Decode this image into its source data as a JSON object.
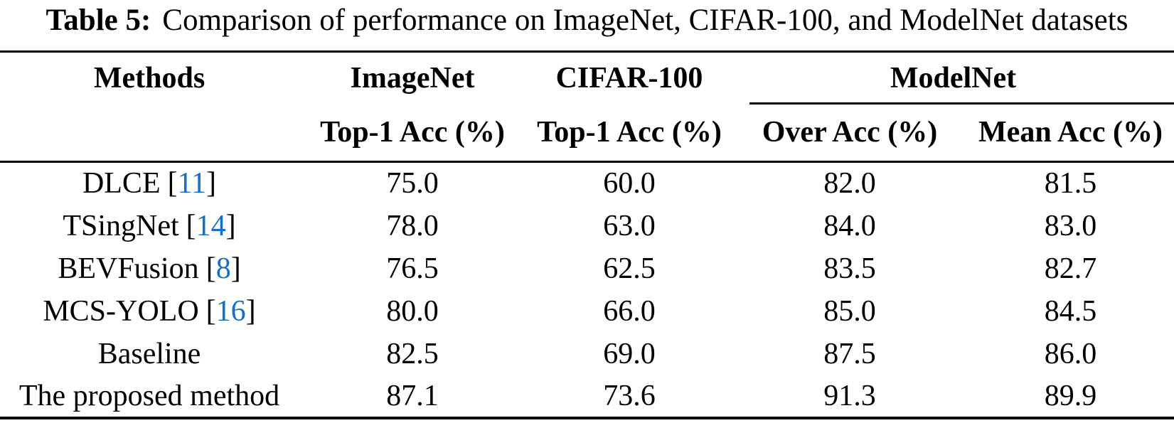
{
  "caption": {
    "label": "Table 5:",
    "text": "Comparison of performance on ImageNet, CIFAR-100, and ModelNet datasets"
  },
  "table": {
    "header": {
      "methods": "Methods",
      "imagenet": "ImageNet",
      "cifar": "CIFAR-100",
      "modelnet": "ModelNet",
      "sub_imagenet": "Top-1 Acc (%)",
      "sub_cifar": "Top-1 Acc (%)",
      "sub_over": "Over Acc (%)",
      "sub_mean": "Mean Acc (%)"
    },
    "cite_brackets": {
      "open": "[",
      "close": "]"
    },
    "rows": [
      {
        "method": "DLCE",
        "cite": "11",
        "values": [
          "75.0",
          "60.0",
          "82.0",
          "81.5"
        ]
      },
      {
        "method": "TSingNet",
        "cite": "14",
        "values": [
          "78.0",
          "63.0",
          "84.0",
          "83.0"
        ]
      },
      {
        "method": "BEVFusion",
        "cite": "8",
        "values": [
          "76.5",
          "62.5",
          "83.5",
          "82.7"
        ]
      },
      {
        "method": "MCS-YOLO",
        "cite": "16",
        "values": [
          "80.0",
          "66.0",
          "85.0",
          "84.5"
        ]
      },
      {
        "method": "Baseline",
        "cite": null,
        "values": [
          "82.5",
          "69.0",
          "87.5",
          "86.0"
        ]
      },
      {
        "method": "The proposed method",
        "cite": null,
        "values": [
          "87.1",
          "73.6",
          "91.3",
          "89.9"
        ]
      }
    ]
  },
  "colors": {
    "citation_blue": "#1470C8",
    "text_black": "#000000"
  }
}
